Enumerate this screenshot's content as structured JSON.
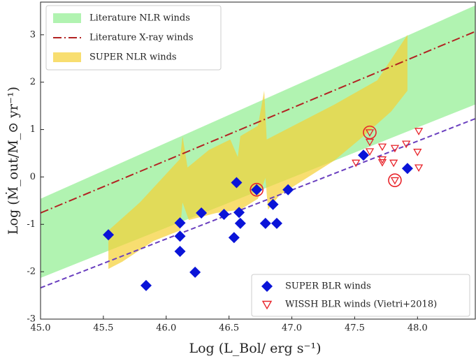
{
  "chart_data": {
    "type": "scatter",
    "xlabel": "Log (L_Bol/ erg s⁻¹)",
    "ylabel": "Log (Ṁ_out/M_⊙ yr⁻¹)",
    "xlim": [
      45,
      48.46
    ],
    "ylim": [
      -3,
      3.69
    ],
    "xticks": [
      {
        "value": 45,
        "label": "45.0"
      },
      45.5,
      {
        "value": 46,
        "label": "46.0"
      },
      46.5,
      {
        "value": 47,
        "label": "47.0"
      },
      47.5,
      {
        "value": 48,
        "label": "48.0"
      }
    ],
    "yticks": [
      -3,
      -2,
      -1,
      0,
      1,
      2,
      3
    ],
    "series": [
      {
        "name": "Literature NLR winds",
        "kind": "band",
        "color": "#90ee90",
        "legend": "upper left",
        "x": [
          45,
          48.46,
          48.46,
          45
        ],
        "y": [
          -2.13,
          1.53,
          3.62,
          -0.46
        ]
      },
      {
        "name": "Literature X-ray winds",
        "kind": "dashdot",
        "color": "#b22222",
        "legend": "upper left",
        "x": [
          45,
          48.46
        ],
        "y": [
          -0.76,
          3.07
        ]
      },
      {
        "name": "SUPER NLR winds",
        "kind": "band",
        "color": "#f5d033",
        "legend": "upper left",
        "x": [
          45.54,
          45.79,
          46.11,
          46.13,
          46.17,
          46.34,
          46.51,
          46.57,
          46.59,
          46.73,
          46.78,
          46.8,
          46.96,
          47.34,
          47.68,
          47.92,
          47.92,
          47.79,
          47.57,
          47.34,
          47.12,
          46.9,
          46.81,
          46.79,
          46.73,
          46.59,
          46.4,
          46.18,
          46.13,
          46.11,
          45.9,
          45.65,
          45.54
        ],
        "y": [
          -1.13,
          -0.54,
          0.38,
          0.86,
          0.2,
          0.57,
          0.79,
          0.42,
          0.86,
          1.08,
          1.82,
          0.79,
          1.01,
          1.53,
          2.04,
          3.0,
          1.82,
          1.38,
          0.86,
          0.35,
          -0.02,
          -0.39,
          -0.69,
          -0.02,
          -0.46,
          -0.69,
          -0.76,
          -0.91,
          -0.54,
          -1.13,
          -1.35,
          -1.79,
          -1.94
        ]
      },
      {
        "kind": "dashed",
        "color": "#6a3fbf",
        "x": [
          45,
          48.46
        ],
        "y": [
          -2.34,
          1.23
        ]
      },
      {
        "name": "SUPER BLR winds",
        "kind": "diamond",
        "color": "#0a14d8",
        "legend": "lower right",
        "x": [
          45.54,
          45.84,
          46.11,
          46.11,
          46.11,
          46.23,
          46.28,
          46.46,
          46.56,
          46.58,
          46.59,
          46.54,
          46.72,
          46.79,
          46.85,
          46.88,
          46.97,
          47.57,
          47.92
        ],
        "y": [
          -1.22,
          -2.29,
          -0.97,
          -1.25,
          -1.57,
          -2.01,
          -0.76,
          -0.79,
          -0.12,
          -0.75,
          -0.98,
          -1.28,
          -0.27,
          -0.98,
          -0.58,
          -0.98,
          -0.27,
          0.46,
          0.18
        ]
      },
      {
        "name": "WISSH BLR winds (Vietri+2018)",
        "kind": "triangle",
        "color": "#e8242a",
        "legend": "lower right",
        "x": [
          47.51,
          47.62,
          47.62,
          47.62,
          47.72,
          47.72,
          47.72,
          47.82,
          47.81,
          47.82,
          47.91,
          48.01,
          48.0,
          48.01
        ],
        "y": [
          0.3,
          0.94,
          0.74,
          0.54,
          0.64,
          0.37,
          0.31,
          0.61,
          0.3,
          -0.07,
          0.7,
          0.97,
          0.53,
          0.2
        ]
      },
      {
        "kind": "circle",
        "color": "#e8242a",
        "x": [
          46.72,
          47.62,
          47.82
        ],
        "y": [
          -0.27,
          0.94,
          -0.07
        ]
      }
    ]
  }
}
